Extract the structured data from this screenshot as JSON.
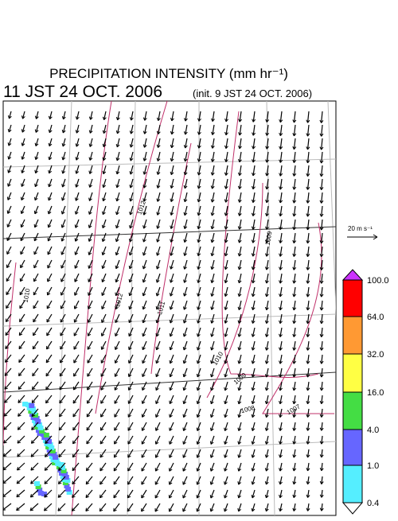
{
  "header": {
    "title": "PRECIPITATION INTENSITY (mm hr⁻¹)",
    "valid_time": "11 JST 24 OCT. 2006",
    "init_time": "(init. 9 JST 24 OCT. 2006)"
  },
  "reference_vector": "20 m s⁻¹",
  "isobar_labels": [
    "1012",
    "1012",
    "1011",
    "1010",
    "1009",
    "1008",
    "1007",
    "1009",
    "1010"
  ],
  "colorbar": {
    "levels": [
      {
        "value": 100,
        "label": "100.0"
      },
      {
        "value": 64,
        "label": "64.0"
      },
      {
        "value": 32,
        "label": "32.0"
      },
      {
        "value": 16,
        "label": "16.0"
      },
      {
        "value": 4,
        "label": "4.0"
      },
      {
        "value": 1,
        "label": "1.0"
      },
      {
        "value": 0.4,
        "label": "0.4"
      }
    ],
    "colors": [
      "#ff0000",
      "#ff9933",
      "#ffff44",
      "#44dd44",
      "#6666ff",
      "#55eeff"
    ],
    "over_color": "#cc33ff",
    "under_color": "#ffffff"
  }
}
